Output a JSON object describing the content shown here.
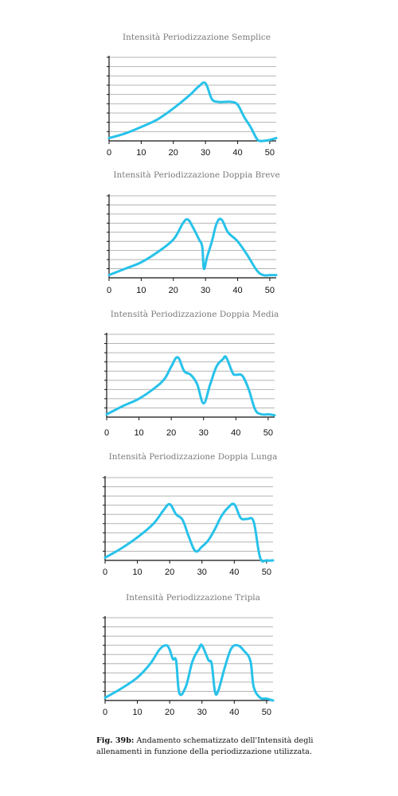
{
  "colors": {
    "line": "#27c2ea",
    "grid": "#b4b4b4",
    "axis": "#111111",
    "title": "#7a7a7a"
  },
  "chart_data": [
    {
      "type": "line",
      "title": "Intensità Periodizzazione Semplice",
      "xlabel": "",
      "ylabel": "",
      "xlim": [
        0,
        52
      ],
      "ylim": [
        0,
        9
      ],
      "xticks": [
        0,
        10,
        20,
        30,
        40,
        50
      ],
      "grid": "horizontal",
      "series": [
        {
          "x": [
            0,
            5,
            10,
            15,
            20,
            25,
            28,
            30,
            32,
            34,
            36,
            38,
            40,
            42,
            44,
            46,
            47,
            48,
            50,
            52
          ],
          "y": [
            0.3,
            0.8,
            1.5,
            2.3,
            3.5,
            4.9,
            5.9,
            6.2,
            4.5,
            4.2,
            4.2,
            4.2,
            3.9,
            2.6,
            1.5,
            0.2,
            0.0,
            0.0,
            0.1,
            0.3
          ]
        }
      ]
    },
    {
      "type": "line",
      "title": "Intensità Periodizzazione Doppia Breve",
      "xlabel": "",
      "ylabel": "",
      "xlim": [
        0,
        52
      ],
      "ylim": [
        0,
        9
      ],
      "xticks": [
        0,
        10,
        20,
        30,
        40,
        50
      ],
      "grid": "horizontal",
      "series": [
        {
          "x": [
            0,
            5,
            10,
            15,
            20,
            23,
            24.5,
            26,
            28,
            29,
            29.5,
            30.5,
            32,
            33.5,
            35,
            37,
            40,
            43,
            46,
            48,
            50,
            52
          ],
          "y": [
            0.3,
            1.0,
            1.7,
            2.8,
            4.2,
            6.0,
            6.4,
            5.6,
            4.2,
            3.4,
            1.0,
            2.3,
            4.0,
            6.0,
            6.4,
            5.0,
            4.0,
            2.5,
            0.8,
            0.3,
            0.3,
            0.3
          ]
        }
      ]
    },
    {
      "type": "line",
      "title": "Intensità Periodizzazione Doppia Media",
      "xlabel": "",
      "ylabel": "",
      "xlim": [
        0,
        52
      ],
      "ylim": [
        0,
        9
      ],
      "xticks": [
        0,
        10,
        20,
        30,
        40,
        50
      ],
      "grid": "horizontal",
      "series": [
        {
          "x": [
            0,
            5,
            10,
            15,
            18,
            20,
            22,
            24,
            26,
            28,
            30,
            32,
            34,
            36,
            37,
            39,
            40,
            42,
            44,
            46,
            48,
            50,
            52
          ],
          "y": [
            0.3,
            1.2,
            2.0,
            3.2,
            4.2,
            5.5,
            6.5,
            5.0,
            4.6,
            3.6,
            1.5,
            3.5,
            5.5,
            6.3,
            6.5,
            4.8,
            4.6,
            4.5,
            3.0,
            0.8,
            0.3,
            0.3,
            0.2
          ]
        }
      ]
    },
    {
      "type": "line",
      "title": "Intensità Periodizzazione Doppia Lunga",
      "xlabel": "",
      "ylabel": "",
      "xlim": [
        0,
        52
      ],
      "ylim": [
        0,
        9
      ],
      "xticks": [
        0,
        10,
        20,
        30,
        40,
        50
      ],
      "grid": "horizontal",
      "series": [
        {
          "x": [
            0,
            5,
            10,
            15,
            18,
            20,
            22,
            24,
            26,
            28,
            30,
            32,
            34,
            36,
            38,
            40,
            42,
            44,
            46,
            48,
            50,
            52
          ],
          "y": [
            0.3,
            1.3,
            2.5,
            4.0,
            5.4,
            6.1,
            5.0,
            4.4,
            2.5,
            1.0,
            1.5,
            2.2,
            3.4,
            4.8,
            5.7,
            6.1,
            4.6,
            4.5,
            4.2,
            0.3,
            0.0,
            0.0
          ]
        }
      ]
    },
    {
      "type": "line",
      "title": "Intensità Periodizzazione Tripla",
      "xlabel": "",
      "ylabel": "",
      "xlim": [
        0,
        52
      ],
      "ylim": [
        0,
        9
      ],
      "xticks": [
        0,
        10,
        20,
        30,
        40,
        50
      ],
      "grid": "horizontal",
      "series": [
        {
          "x": [
            0,
            5,
            10,
            14,
            17,
            19,
            20,
            21,
            22,
            23,
            25,
            27,
            29,
            30,
            32,
            33,
            34,
            35,
            37,
            39,
            41,
            43,
            45,
            46,
            48,
            50,
            52
          ],
          "y": [
            0.3,
            1.3,
            2.5,
            4.0,
            5.6,
            6.0,
            5.5,
            4.5,
            4.3,
            0.8,
            1.5,
            4.2,
            5.6,
            6.0,
            4.4,
            4.0,
            1.0,
            1.0,
            3.5,
            5.6,
            6.0,
            5.4,
            4.3,
            1.5,
            0.3,
            0.2,
            0.0
          ]
        }
      ]
    }
  ],
  "caption": {
    "label": "Fig. 39b:",
    "text": " Andamento schematizzato dell'Intensità degli allenamenti in funzione della periodizzazione utilizzata."
  }
}
